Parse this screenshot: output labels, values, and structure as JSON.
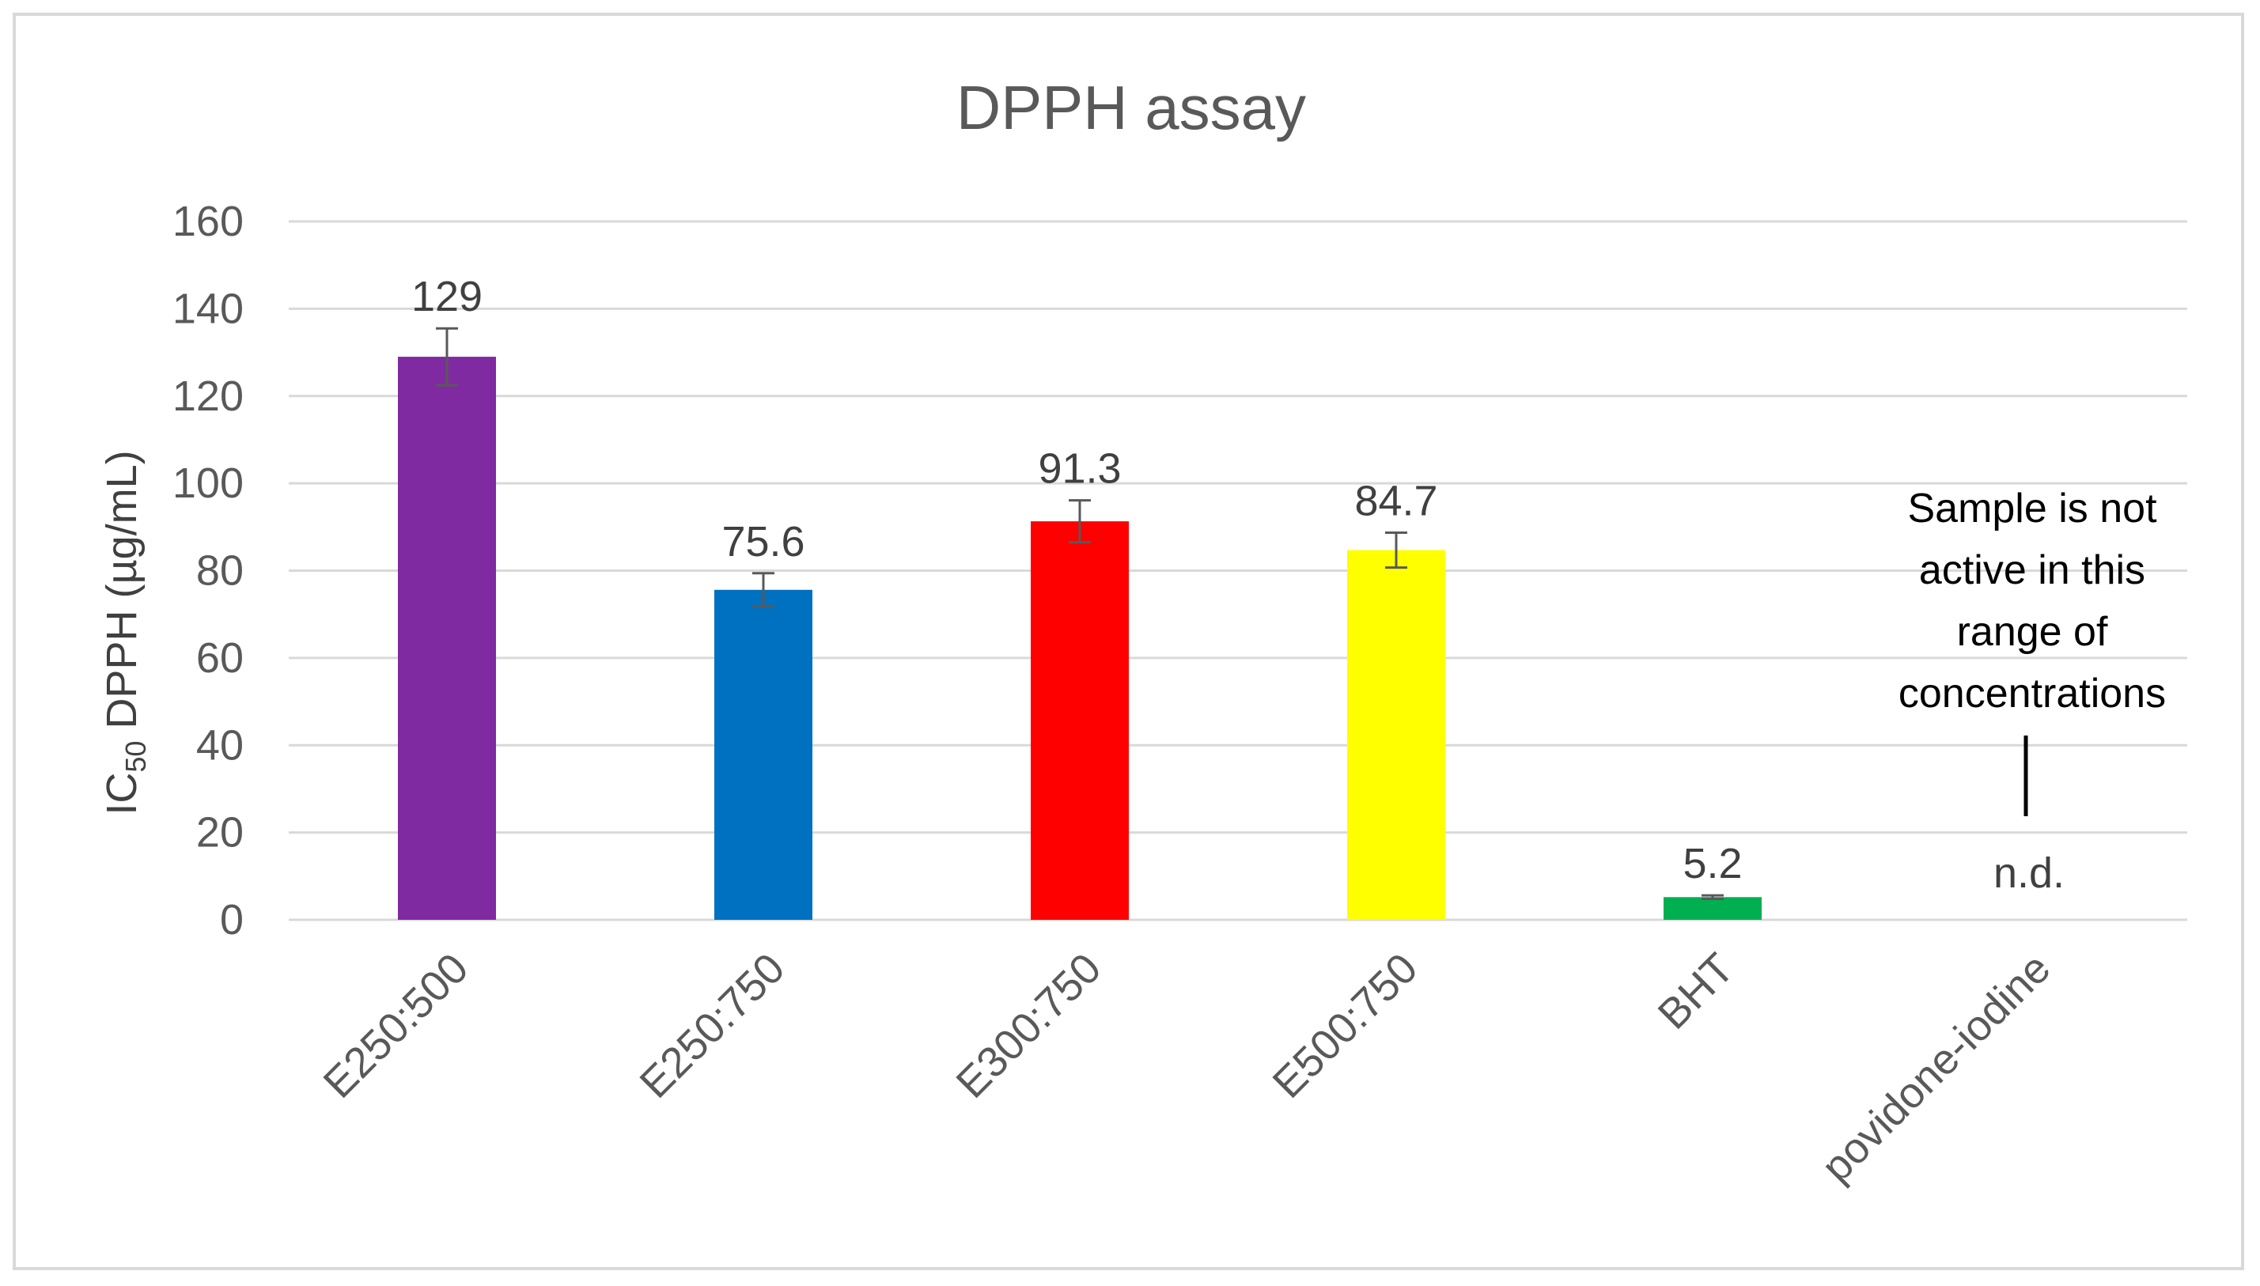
{
  "chart_data": {
    "type": "bar",
    "title": "DPPH assay",
    "ylabel_main": "IC",
    "ylabel_sub": "50",
    "ylabel_rest": " DPPH (µg/mL)",
    "ylim": [
      0,
      160
    ],
    "yticks": [
      0,
      20,
      40,
      60,
      80,
      100,
      120,
      140,
      160
    ],
    "grid": true,
    "categories": [
      "E250:500",
      "E250:750",
      "E300:750",
      "E500:750",
      "BHT",
      "povidone-iodine"
    ],
    "values": [
      129,
      75.6,
      91.3,
      84.7,
      5.2,
      null
    ],
    "errors": [
      6.5,
      3.8,
      4.8,
      4.0,
      0.4,
      null
    ],
    "data_labels": [
      "129",
      "75.6",
      "91.3",
      "84.7",
      "5.2",
      "n.d."
    ],
    "colors": [
      "#7f2aa0",
      "#0070c0",
      "#ff0000",
      "#ffff00",
      "#00b050",
      null
    ],
    "annotation": [
      "Sample is not",
      "active in this",
      "range of",
      "concentrations"
    ]
  }
}
